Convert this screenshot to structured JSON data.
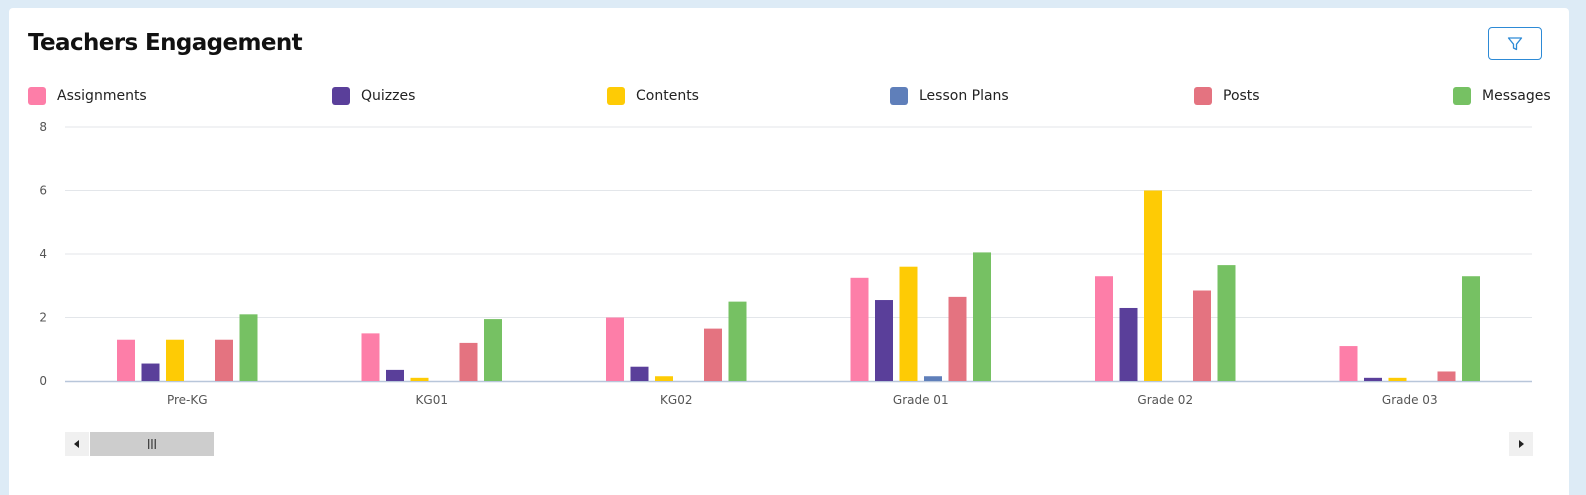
{
  "widget": {
    "title": "Teachers Engagement",
    "filter_icon": "filter-icon"
  },
  "colors": {
    "accent": "#2d8ad6",
    "background": "#ddebf6"
  },
  "chart_data": {
    "type": "bar",
    "categories": [
      "Pre-KG",
      "KG01",
      "KG02",
      "Grade 01",
      "Grade 02",
      "Grade 03"
    ],
    "series": [
      {
        "name": "Assignments",
        "color": "#fd7ea8",
        "values": [
          1.3,
          1.5,
          2.0,
          3.25,
          3.3,
          1.1
        ]
      },
      {
        "name": "Quizzes",
        "color": "#5a3f9a",
        "values": [
          0.55,
          0.35,
          0.45,
          2.55,
          2.3,
          0.1
        ]
      },
      {
        "name": "Contents",
        "color": "#fecb05",
        "values": [
          1.3,
          0.1,
          0.15,
          3.6,
          6.0,
          0.1
        ]
      },
      {
        "name": "Lesson Plans",
        "color": "#5f7fba",
        "values": [
          0,
          0,
          0,
          0.15,
          0,
          0
        ]
      },
      {
        "name": "Posts",
        "color": "#e47380",
        "values": [
          1.3,
          1.2,
          1.65,
          2.65,
          2.85,
          0.3
        ]
      },
      {
        "name": "Messages",
        "color": "#76c163",
        "values": [
          2.1,
          1.95,
          2.5,
          4.05,
          3.65,
          3.3
        ]
      }
    ],
    "ylim": [
      0,
      8
    ],
    "yticks": [
      0,
      2,
      4,
      6,
      8
    ],
    "grid": true,
    "legend_position": "top",
    "xlabel": "",
    "ylabel": ""
  },
  "scrollbar": {
    "left_icon": "arrow-left-icon",
    "right_icon": "arrow-right-icon",
    "thumb_icon": "grip-icon"
  }
}
